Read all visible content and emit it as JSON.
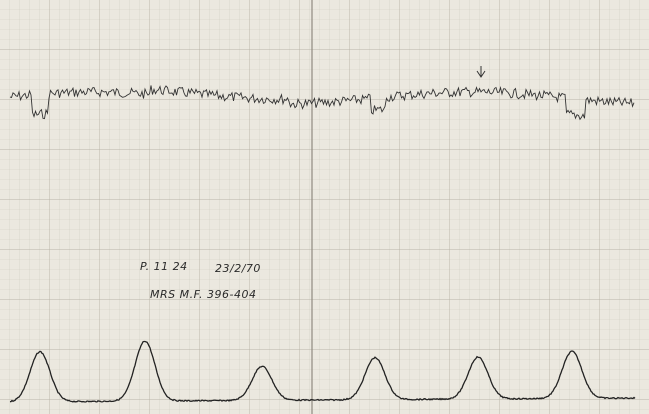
{
  "annotations": {
    "line1": {
      "id": "P. 11 24",
      "date": "23/2/70"
    },
    "line2": "MRS M.F. 396-404"
  }
}
